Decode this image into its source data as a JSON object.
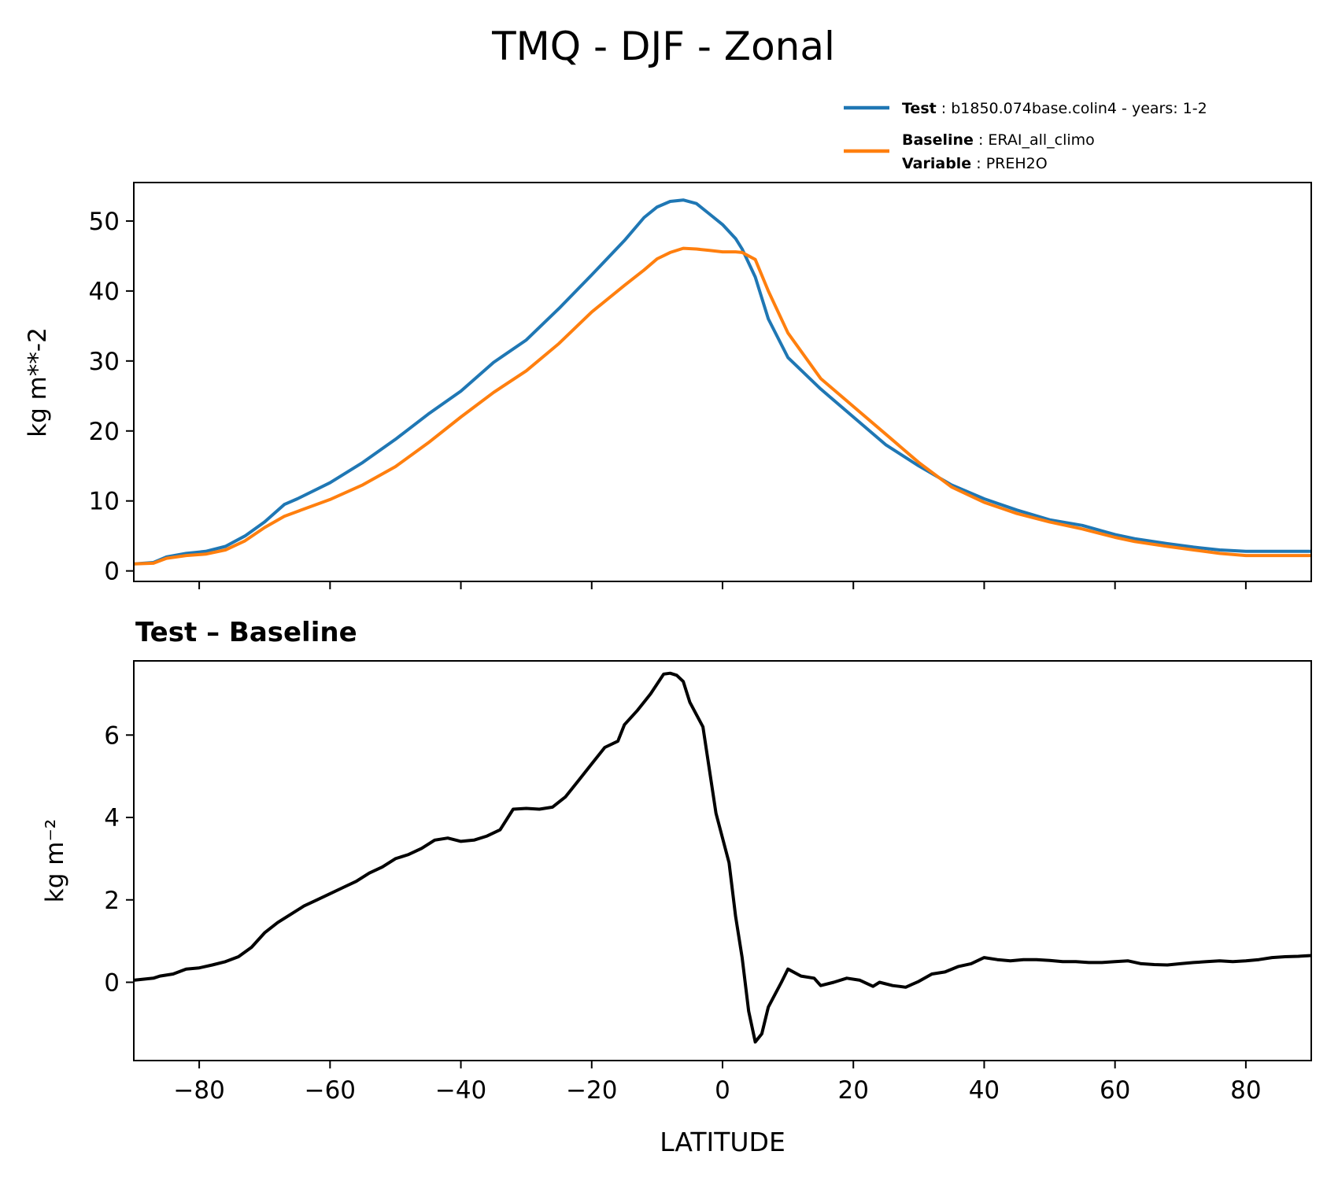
{
  "chart_data": [
    {
      "type": "line",
      "title": "TMQ - DJF - Zonal",
      "xlabel": "",
      "ylabel": "kg m**-2",
      "xlim": [
        -90,
        90
      ],
      "ylim": [
        -1.5,
        55.5
      ],
      "xticks": [
        -80,
        -60,
        -40,
        -20,
        0,
        20,
        40,
        60,
        80
      ],
      "yticks": [
        0,
        10,
        20,
        30,
        40,
        50
      ],
      "legend": {
        "placement": "top-right",
        "test_label": "Test",
        "test_text": "b1850.074base.colin4 - years: 1-2",
        "baseline_label": "Baseline",
        "baseline_text": "ERAI_all_climo",
        "variable_label": "Variable",
        "variable_text": "PREH2O"
      },
      "series": [
        {
          "name": "Test",
          "color": "#1f77b4",
          "x": [
            -90,
            -87,
            -85,
            -82,
            -79,
            -76,
            -73,
            -70,
            -67,
            -65,
            -60,
            -55,
            -50,
            -45,
            -40,
            -35,
            -30,
            -25,
            -20,
            -15,
            -12,
            -10,
            -8,
            -6,
            -4,
            -2,
            0,
            2,
            3,
            5,
            7,
            10,
            15,
            20,
            25,
            30,
            35,
            40,
            45,
            50,
            55,
            60,
            63,
            68,
            72,
            76,
            80,
            85,
            90
          ],
          "values": [
            1.0,
            1.2,
            2.0,
            2.5,
            2.8,
            3.5,
            5.0,
            7.0,
            9.5,
            10.3,
            12.6,
            15.5,
            18.8,
            22.4,
            25.7,
            29.8,
            33.0,
            37.5,
            42.3,
            47.2,
            50.5,
            52.0,
            52.8,
            53.0,
            52.5,
            51.0,
            49.5,
            47.5,
            46.0,
            42.0,
            36.0,
            30.5,
            26.0,
            22.0,
            18.0,
            15.0,
            12.3,
            10.3,
            8.7,
            7.3,
            6.5,
            5.2,
            4.6,
            3.9,
            3.4,
            3.0,
            2.8,
            2.8,
            2.8
          ]
        },
        {
          "name": "Baseline",
          "color": "#ff7f0e",
          "x": [
            -90,
            -87,
            -85,
            -82,
            -79,
            -76,
            -73,
            -70,
            -67,
            -65,
            -60,
            -55,
            -50,
            -45,
            -40,
            -35,
            -30,
            -25,
            -20,
            -15,
            -12,
            -10,
            -8,
            -6,
            -4,
            -2,
            0,
            2,
            3,
            5,
            7,
            10,
            15,
            20,
            25,
            30,
            35,
            40,
            45,
            50,
            55,
            60,
            63,
            68,
            72,
            76,
            80,
            85,
            90
          ],
          "values": [
            1.0,
            1.1,
            1.8,
            2.2,
            2.4,
            3.0,
            4.3,
            6.2,
            7.8,
            8.5,
            10.2,
            12.3,
            14.9,
            18.3,
            22.0,
            25.5,
            28.6,
            32.5,
            37.0,
            40.8,
            43.0,
            44.6,
            45.5,
            46.1,
            46.0,
            45.8,
            45.6,
            45.6,
            45.5,
            44.5,
            40.0,
            34.0,
            27.5,
            23.5,
            19.5,
            15.5,
            12.0,
            9.8,
            8.2,
            7.0,
            6.0,
            4.8,
            4.2,
            3.5,
            3.0,
            2.5,
            2.2,
            2.2,
            2.2
          ]
        }
      ]
    },
    {
      "type": "line",
      "title": "Test – Baseline",
      "xlabel": "LATITUDE",
      "ylabel": "kg m⁻²",
      "xlim": [
        -90,
        90
      ],
      "ylim": [
        -1.9,
        7.8
      ],
      "xticks": [
        -80,
        -60,
        -40,
        -20,
        0,
        20,
        40,
        60,
        80
      ],
      "yticks": [
        0,
        2,
        4,
        6
      ],
      "series": [
        {
          "name": "Test – Baseline",
          "color": "#000000",
          "x": [
            -90,
            -87,
            -86,
            -84,
            -82,
            -80,
            -78,
            -76,
            -74,
            -72,
            -70,
            -68,
            -66,
            -64,
            -62,
            -60,
            -58,
            -56,
            -54,
            -52,
            -50,
            -48,
            -46,
            -44,
            -42,
            -40,
            -38,
            -36,
            -34,
            -32,
            -30,
            -28,
            -26,
            -24,
            -22,
            -20,
            -18,
            -16,
            -15,
            -13,
            -11,
            -9,
            -8,
            -7,
            -6,
            -5,
            -3,
            -1,
            1,
            2,
            3,
            4,
            5,
            6,
            7,
            8,
            9,
            10,
            12,
            14,
            15,
            17,
            19,
            21,
            23,
            24,
            26,
            27,
            28,
            29,
            30,
            32,
            34,
            36,
            38,
            40,
            42,
            44,
            46,
            48,
            50,
            52,
            54,
            56,
            58,
            60,
            62,
            64,
            66,
            68,
            70,
            72,
            74,
            76,
            78,
            80,
            82,
            84,
            86,
            88,
            90
          ],
          "values": [
            0.05,
            0.1,
            0.15,
            0.2,
            0.32,
            0.35,
            0.42,
            0.5,
            0.62,
            0.85,
            1.2,
            1.45,
            1.65,
            1.85,
            2.0,
            2.15,
            2.3,
            2.45,
            2.65,
            2.8,
            3.0,
            3.1,
            3.25,
            3.45,
            3.5,
            3.42,
            3.45,
            3.55,
            3.7,
            4.2,
            4.22,
            4.2,
            4.25,
            4.5,
            4.9,
            5.3,
            5.7,
            5.85,
            6.25,
            6.6,
            7.0,
            7.48,
            7.5,
            7.45,
            7.3,
            6.8,
            6.2,
            4.1,
            2.9,
            1.6,
            0.6,
            -0.7,
            -1.45,
            -1.25,
            -0.6,
            -0.3,
            0.0,
            0.32,
            0.15,
            0.1,
            -0.08,
            0.0,
            0.1,
            0.05,
            -0.1,
            0.0,
            -0.08,
            -0.1,
            -0.12,
            -0.05,
            0.02,
            0.2,
            0.25,
            0.38,
            0.45,
            0.6,
            0.55,
            0.52,
            0.55,
            0.55,
            0.53,
            0.5,
            0.5,
            0.48,
            0.48,
            0.5,
            0.52,
            0.45,
            0.43,
            0.42,
            0.45,
            0.48,
            0.5,
            0.52,
            0.5,
            0.52,
            0.55,
            0.6,
            0.62,
            0.63,
            0.65
          ]
        }
      ]
    }
  ]
}
